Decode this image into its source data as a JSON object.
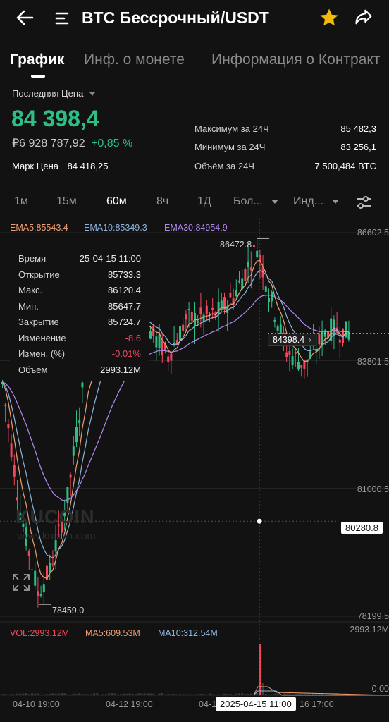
{
  "header": {
    "title": "BTC Бессрочный/USDT",
    "back_icon": "arrow-left-icon",
    "menu_icon": "menu-icon",
    "star_icon": "star-icon",
    "share_icon": "share-icon",
    "star_color": "#f0b90b"
  },
  "tabs": [
    {
      "label": "График"
    },
    {
      "label": "Инф. о монете"
    },
    {
      "label": "Информация о Контракт"
    }
  ],
  "price_block": {
    "selector_label": "Последняя Цена",
    "last_price": "84 398,4",
    "fiat_price": "₽6 928 787,92",
    "change_pct": "+0,85 %",
    "mark_label": "Марк Цена",
    "mark_value": "84 418,25"
  },
  "stats": [
    {
      "label": "Максимум за 24Ч",
      "value": "85 482,3"
    },
    {
      "label": "Минимум за 24Ч",
      "value": "83 256,1"
    },
    {
      "label": "Объём за 24Ч",
      "value": "7 500,484 BTC"
    }
  ],
  "timeframes": [
    {
      "label": "1м"
    },
    {
      "label": "15м"
    },
    {
      "label": "60м",
      "active": true
    },
    {
      "label": "8ч"
    },
    {
      "label": "1Д"
    },
    {
      "label": "Бол..."
    },
    {
      "label": "Инд..."
    }
  ],
  "ema_legend": [
    {
      "label": "EMA5:85543.4",
      "color": "#f0a070"
    },
    {
      "label": "EMA10:85349.3",
      "color": "#8fb4e0"
    },
    {
      "label": "EMA30:84954.9",
      "color": "#b38af0"
    }
  ],
  "tooltip": [
    {
      "label": "Время",
      "value": "25-04-15 11:00"
    },
    {
      "label": "Открытие",
      "value": "85733.3"
    },
    {
      "label": "Макс.",
      "value": "86120.4"
    },
    {
      "label": "Мин.",
      "value": "85647.7"
    },
    {
      "label": "Закрытие",
      "value": "85724.7"
    },
    {
      "label": "Изменение",
      "value": "-8.6",
      "color": "#f6465d"
    },
    {
      "label": "Измен. (%)",
      "value": "-0.01%",
      "color": "#f6465d"
    },
    {
      "label": "Объем",
      "value": "2993.12M"
    }
  ],
  "price_axis": {
    "labels": [
      "86602.5",
      "83801.5",
      "81000.5",
      "78199.5"
    ],
    "current": "84398.4",
    "crosshair": "80280.8",
    "high_marker": "86472.8",
    "low_marker": "78459.0"
  },
  "volume": {
    "vol_label": "VOL:2993.12M",
    "ma5_label": "MA5:609.53M",
    "ma10_label": "MA10:312.54M",
    "axis_top": "2993.12M",
    "axis_bottom": "0.00"
  },
  "time_axis": {
    "labels": [
      "04-10 19:00",
      "04-12 19:00",
      "04-1",
      "16 17:00"
    ],
    "crosshair": "2025-04-15 11:00"
  },
  "watermark": {
    "brand": "KUCOIN",
    "url": "www.kucoin.com"
  },
  "expand_icon": "expand-icon",
  "chart_data": {
    "type": "candlestick",
    "timeframe": "60м",
    "price_axis_ticks": [
      86602.5,
      83801.5,
      81000.5,
      78199.5
    ],
    "ylim": [
      78199.5,
      86602.5
    ],
    "last_price": 84398.4,
    "high_marker": 86472.8,
    "low_marker": 78459.0,
    "crosshair_price": 80280.8,
    "crosshair_time": "2025-04-15 11:00",
    "hovered_candle": {
      "open": 85733.3,
      "high": 86120.4,
      "low": 85647.7,
      "close": 85724.7,
      "volume": "2993.12M"
    },
    "ema": [
      {
        "name": "EMA5",
        "value": 85543.4
      },
      {
        "name": "EMA10",
        "value": 85349.3
      },
      {
        "name": "EMA30",
        "value": 84954.9
      }
    ],
    "volume_ma": [
      {
        "name": "MA5",
        "value": "609.53M"
      },
      {
        "name": "MA10",
        "value": "312.54M"
      }
    ]
  }
}
